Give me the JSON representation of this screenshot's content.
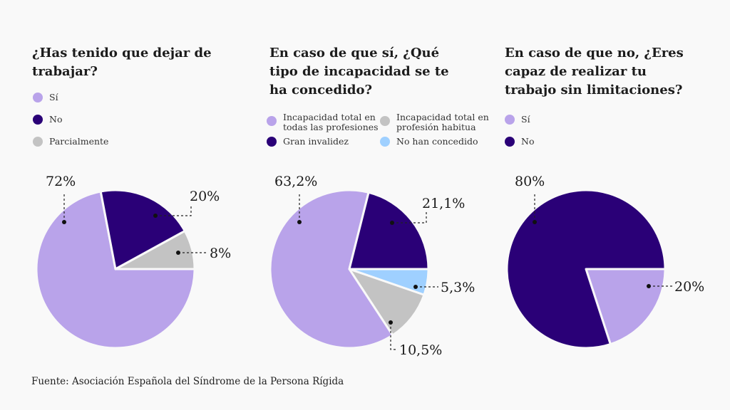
{
  "colors": {
    "light_purple": "#b9a3ea",
    "dark_purple": "#2a0077",
    "gray": "#c3c3c3",
    "light_blue": "#9fd0ff",
    "background": "#f9f9f9"
  },
  "chart_data": [
    {
      "type": "pie",
      "title": "¿Has tenido que dejar de trabajar?",
      "title_lines": [
        "¿Has tenido que dejar de",
        "trabajar?"
      ],
      "legend": [
        {
          "label": "Sí",
          "color": "#b9a3ea"
        },
        {
          "label": "No",
          "color": "#2a0077"
        },
        {
          "label": "Parcialmente",
          "color": "#c3c3c3"
        }
      ],
      "slices": [
        {
          "label": "Sí",
          "value": 72,
          "text": "72%",
          "color": "#b9a3ea"
        },
        {
          "label": "No",
          "value": 20,
          "text": "20%",
          "color": "#2a0077"
        },
        {
          "label": "Parcialmente",
          "value": 8,
          "text": "8%",
          "color": "#c3c3c3"
        }
      ]
    },
    {
      "type": "pie",
      "title": "En caso de que sí, ¿Qué tipo de incapacidad se te ha concedido?",
      "title_lines": [
        "En caso de que sí, ¿Qué",
        "tipo de incapacidad se te",
        "ha concedido?"
      ],
      "legend": [
        {
          "label": "Incapacidad total en todas las profesiones",
          "lines": [
            "Incapacidad total en",
            "todas las profesiones"
          ],
          "color": "#b9a3ea"
        },
        {
          "label": "Incapacidad total en profesión habitua",
          "lines": [
            "Incapacidad total en",
            "profesión habitua"
          ],
          "color": "#c3c3c3"
        },
        {
          "label": "Gran invalidez",
          "lines": [
            "Gran invalidez"
          ],
          "color": "#2a0077"
        },
        {
          "label": "No han concedido",
          "lines": [
            "No han concedido"
          ],
          "color": "#9fd0ff"
        }
      ],
      "slices": [
        {
          "label": "No han concedido",
          "value": 5.3,
          "text": "5,3%",
          "color": "#9fd0ff"
        },
        {
          "label": "Incapacidad total en profesión habitua",
          "value": 10.5,
          "text": "10,5%",
          "color": "#c3c3c3"
        },
        {
          "label": "Incapacidad total en todas las profesiones",
          "value": 63.2,
          "text": "63,2%",
          "color": "#b9a3ea"
        },
        {
          "label": "Gran invalidez",
          "value": 21.1,
          "text": "21,1%",
          "color": "#2a0077"
        }
      ]
    },
    {
      "type": "pie",
      "title": "En caso de que no, ¿Eres capaz de realizar tu trabajo sin limitaciones?",
      "title_lines": [
        "En caso de que no, ¿Eres",
        "capaz de realizar tu",
        "trabajo sin limitaciones?"
      ],
      "legend": [
        {
          "label": "Sí",
          "color": "#b9a3ea"
        },
        {
          "label": "No",
          "color": "#2a0077"
        }
      ],
      "slices": [
        {
          "label": "Sí",
          "value": 20,
          "text": "20%",
          "color": "#b9a3ea"
        },
        {
          "label": "No",
          "value": 80,
          "text": "80%",
          "color": "#2a0077"
        }
      ]
    }
  ],
  "source": "Fuente: Asociación Española del Síndrome de la Persona Rígida"
}
